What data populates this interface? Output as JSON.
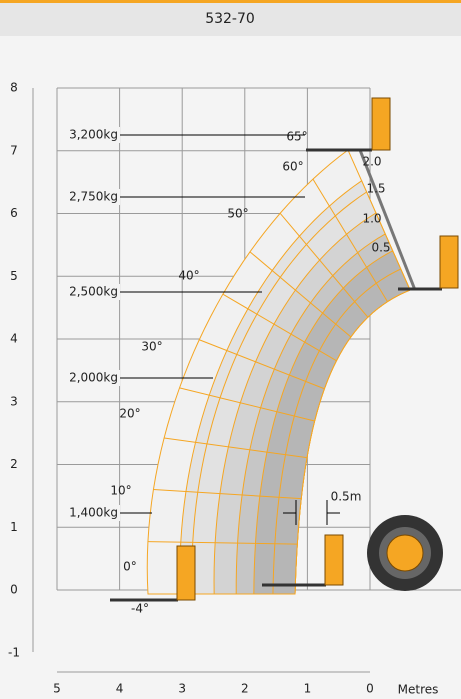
{
  "header": {
    "title": "532-70"
  },
  "y_axis": {
    "labels": [
      "8",
      "7",
      "6",
      "5",
      "4",
      "3",
      "2",
      "1",
      "0",
      "-1"
    ]
  },
  "x_axis": {
    "labels": [
      "5",
      "4",
      "3",
      "2",
      "1",
      "0"
    ],
    "unit": "Metres"
  },
  "loads": [
    "3,200kg",
    "2,750kg",
    "2,500kg",
    "2,000kg",
    "1,400kg"
  ],
  "angles": [
    "65°",
    "60°",
    "50°",
    "40°",
    "30°",
    "20°",
    "10°",
    "0°",
    "-4°"
  ],
  "extensions": [
    "2.0",
    "1.5",
    "1.0",
    "0.5"
  ],
  "dimension": "0.5m"
}
